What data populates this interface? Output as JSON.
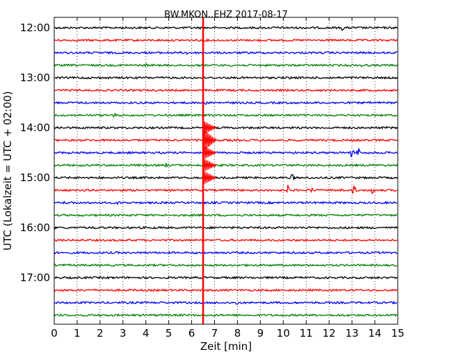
{
  "chart_data": {
    "type": "line",
    "title": "BW.MKON..EHZ 2017-08-17",
    "xlabel": "Zeit  [min]",
    "ylabel": "UTC (Lokalzeit = UTC + 02:00)",
    "xlim": [
      0,
      15
    ],
    "x_ticks": [
      "0",
      "1",
      "2",
      "3",
      "4",
      "5",
      "6",
      "7",
      "8",
      "9",
      "10",
      "11",
      "12",
      "13",
      "14",
      "15"
    ],
    "y_ticks": [
      {
        "label": "12:00",
        "row": 0
      },
      {
        "label": "13:00",
        "row": 4
      },
      {
        "label": "14:00",
        "row": 8
      },
      {
        "label": "15:00",
        "row": 12
      },
      {
        "label": "16:00",
        "row": 16
      },
      {
        "label": "17:00",
        "row": 20
      }
    ],
    "row_colors": [
      "#000000",
      "#ff0000",
      "#0000ff",
      "#008000"
    ],
    "rows": 24,
    "grid": "vertical dotted",
    "event": {
      "x_min": 6.5,
      "color": "#ff0000",
      "first_row": 0,
      "last_row": 23,
      "strong_rows": [
        8,
        9,
        10,
        11,
        12
      ]
    },
    "spikes": [
      {
        "row": 0,
        "x": 2.9,
        "amp": 3
      },
      {
        "row": 0,
        "x": 9.7,
        "amp": 4
      },
      {
        "row": 0,
        "x": 12.6,
        "amp": 5
      },
      {
        "row": 2,
        "x": 5.8,
        "amp": 3
      },
      {
        "row": 3,
        "x": 4.0,
        "amp": 3
      },
      {
        "row": 3,
        "x": 13.4,
        "amp": 3
      },
      {
        "row": 4,
        "x": 1.3,
        "amp": 3
      },
      {
        "row": 4,
        "x": 10.3,
        "amp": 3
      },
      {
        "row": 6,
        "x": 6.6,
        "amp": 3
      },
      {
        "row": 7,
        "x": 2.6,
        "amp": 5
      },
      {
        "row": 11,
        "x": 4.9,
        "amp": 4
      },
      {
        "row": 12,
        "x": 10.4,
        "amp": 7
      },
      {
        "row": 13,
        "x": 10.2,
        "amp": 8
      },
      {
        "row": 13,
        "x": 11.2,
        "amp": 7
      },
      {
        "row": 13,
        "x": 12.5,
        "amp": 5
      },
      {
        "row": 13,
        "x": 13.1,
        "amp": 9
      },
      {
        "row": 13,
        "x": 13.9,
        "amp": 7
      },
      {
        "row": 10,
        "x": 10.5,
        "amp": 4
      },
      {
        "row": 10,
        "x": 13.0,
        "amp": 9
      },
      {
        "row": 10,
        "x": 13.3,
        "amp": 10
      },
      {
        "row": 14,
        "x": 0.4,
        "amp": 4
      },
      {
        "row": 14,
        "x": 2.8,
        "amp": 4
      },
      {
        "row": 22,
        "x": 8.0,
        "amp": 5
      }
    ]
  }
}
